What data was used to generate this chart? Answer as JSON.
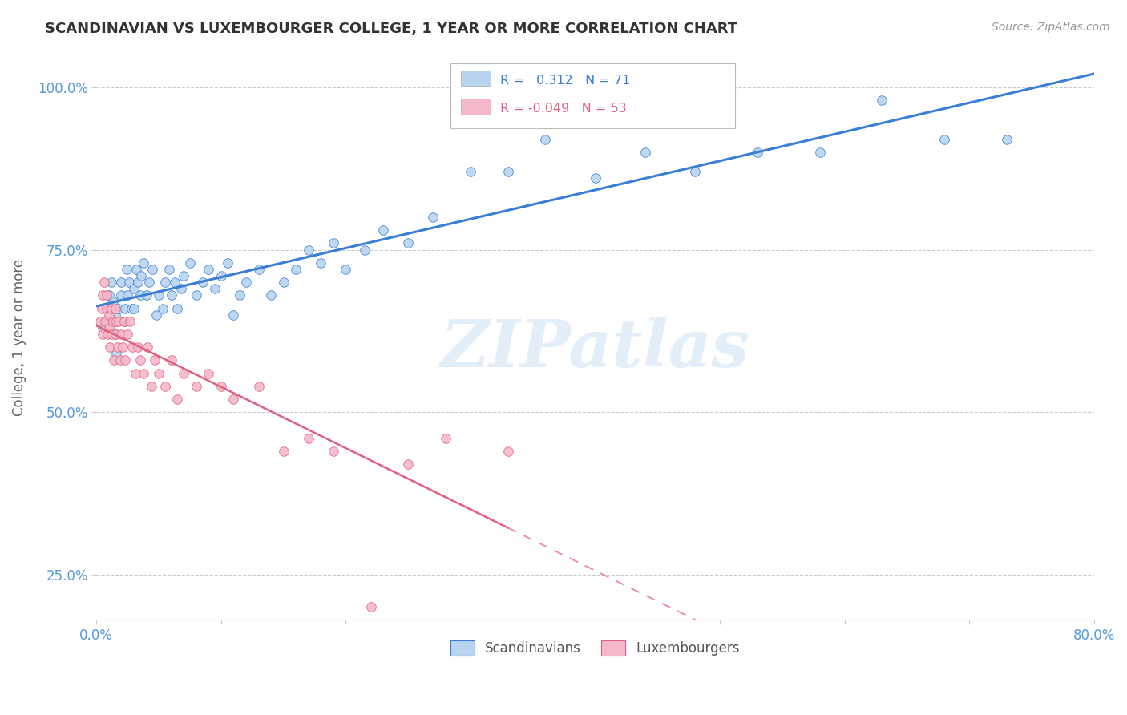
{
  "title": "SCANDINAVIAN VS LUXEMBOURGER COLLEGE, 1 YEAR OR MORE CORRELATION CHART",
  "source_text": "Source: ZipAtlas.com",
  "ylabel": "College, 1 year or more",
  "xlim": [
    0.0,
    0.8
  ],
  "ylim": [
    0.18,
    1.05
  ],
  "xticks": [
    0.0,
    0.1,
    0.2,
    0.3,
    0.4,
    0.5,
    0.6,
    0.7,
    0.8
  ],
  "xticklabels": [
    "0.0%",
    "",
    "",
    "",
    "",
    "",
    "",
    "",
    "80.0%"
  ],
  "yticks": [
    0.25,
    0.5,
    0.75,
    1.0
  ],
  "yticklabels": [
    "25.0%",
    "50.0%",
    "75.0%",
    "100.0%"
  ],
  "r_scandinavian": 0.312,
  "n_scandinavian": 71,
  "r_luxembourger": -0.049,
  "n_luxembourger": 53,
  "color_scandinavian": "#b8d4ee",
  "color_luxembourger": "#f5b8c8",
  "line_color_scandinavian": "#3a7fd5",
  "line_color_luxembourger": "#e06080",
  "watermark": "ZIPatlas",
  "scan_x": [
    0.005,
    0.008,
    0.01,
    0.01,
    0.012,
    0.013,
    0.015,
    0.015,
    0.016,
    0.018,
    0.02,
    0.02,
    0.022,
    0.023,
    0.024,
    0.025,
    0.026,
    0.028,
    0.03,
    0.03,
    0.032,
    0.033,
    0.035,
    0.036,
    0.038,
    0.04,
    0.042,
    0.045,
    0.048,
    0.05,
    0.053,
    0.055,
    0.058,
    0.06,
    0.063,
    0.065,
    0.068,
    0.07,
    0.075,
    0.08,
    0.085,
    0.09,
    0.095,
    0.1,
    0.105,
    0.11,
    0.115,
    0.12,
    0.13,
    0.14,
    0.15,
    0.16,
    0.17,
    0.18,
    0.19,
    0.2,
    0.215,
    0.23,
    0.25,
    0.27,
    0.3,
    0.33,
    0.36,
    0.4,
    0.44,
    0.48,
    0.53,
    0.58,
    0.63,
    0.68,
    0.73
  ],
  "scan_y": [
    0.63,
    0.66,
    0.68,
    0.64,
    0.7,
    0.67,
    0.65,
    0.62,
    0.59,
    0.66,
    0.68,
    0.7,
    0.64,
    0.66,
    0.72,
    0.68,
    0.7,
    0.66,
    0.66,
    0.69,
    0.72,
    0.7,
    0.68,
    0.71,
    0.73,
    0.68,
    0.7,
    0.72,
    0.65,
    0.68,
    0.66,
    0.7,
    0.72,
    0.68,
    0.7,
    0.66,
    0.69,
    0.71,
    0.73,
    0.68,
    0.7,
    0.72,
    0.69,
    0.71,
    0.73,
    0.65,
    0.68,
    0.7,
    0.72,
    0.68,
    0.7,
    0.72,
    0.75,
    0.73,
    0.76,
    0.72,
    0.75,
    0.78,
    0.76,
    0.8,
    0.87,
    0.87,
    0.92,
    0.86,
    0.9,
    0.87,
    0.9,
    0.9,
    0.98,
    0.92,
    0.92
  ],
  "luxe_x": [
    0.003,
    0.004,
    0.005,
    0.005,
    0.006,
    0.007,
    0.008,
    0.008,
    0.009,
    0.01,
    0.01,
    0.011,
    0.012,
    0.012,
    0.013,
    0.014,
    0.015,
    0.015,
    0.016,
    0.017,
    0.018,
    0.019,
    0.02,
    0.021,
    0.022,
    0.023,
    0.025,
    0.027,
    0.029,
    0.031,
    0.033,
    0.035,
    0.038,
    0.041,
    0.044,
    0.047,
    0.05,
    0.055,
    0.06,
    0.065,
    0.07,
    0.08,
    0.09,
    0.1,
    0.11,
    0.13,
    0.15,
    0.17,
    0.19,
    0.22,
    0.25,
    0.28,
    0.33
  ],
  "luxe_y": [
    0.64,
    0.66,
    0.62,
    0.68,
    0.7,
    0.64,
    0.66,
    0.68,
    0.62,
    0.65,
    0.63,
    0.6,
    0.66,
    0.62,
    0.64,
    0.58,
    0.62,
    0.66,
    0.64,
    0.6,
    0.64,
    0.58,
    0.62,
    0.6,
    0.64,
    0.58,
    0.62,
    0.64,
    0.6,
    0.56,
    0.6,
    0.58,
    0.56,
    0.6,
    0.54,
    0.58,
    0.56,
    0.54,
    0.58,
    0.52,
    0.56,
    0.54,
    0.56,
    0.54,
    0.52,
    0.54,
    0.44,
    0.46,
    0.44,
    0.2,
    0.42,
    0.46,
    0.44
  ]
}
